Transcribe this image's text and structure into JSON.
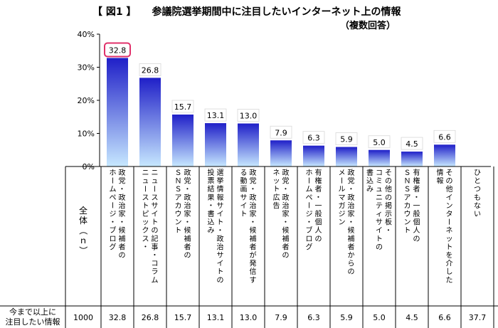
{
  "title": {
    "figure_label": "【 図1 】",
    "main": "参議院選挙期間中に注目したいインターネット上の情報",
    "sub": "（複数回答）"
  },
  "colors": {
    "bar_top": "#1f1fc8",
    "bar_bottom": "#c7e8ff",
    "highlight_border": "#e0306a",
    "grid": "#000000"
  },
  "table": {
    "header_n": "全体（ｎ）",
    "row_label_line1": "今まで以上に",
    "row_label_line2": "注目したい情報",
    "n_value": "1000"
  },
  "chart_data": {
    "type": "bar",
    "ylim": [
      0,
      40
    ],
    "yticks": [
      "0%",
      "10%",
      "20%",
      "30%",
      "40%"
    ],
    "highlight_index": 0,
    "categories": [
      [
        "政党・政治家・候補者の",
        "ホームページ・ブログ"
      ],
      [
        "ニュースサイトの記事・コラム",
        "ニューストピックス・"
      ],
      [
        "政党・政治家・候補者の",
        "ＳＮＳアカウント"
      ],
      [
        "選挙情報サイト・政治サイトの",
        "投票結果・書込み"
      ],
      [
        "政党・政治家・候補者が発信す",
        "る動画サイト"
      ],
      [
        "政党・政治家・候補者の",
        "ネット広告"
      ],
      [
        "有権者・一般個人の",
        "ホームページ・ブログ"
      ],
      [
        "政党・政治家・候補者からの",
        "メールマガジン"
      ],
      [
        "その他の掲示板・",
        "コミュニティサイトの",
        "書込み"
      ],
      [
        "有権者・一般個人の",
        "ＳＮＳアカウント"
      ],
      [
        "その他インターネットを介した",
        "情報"
      ],
      [
        "ひとつもない"
      ]
    ],
    "values": [
      32.8,
      26.8,
      15.7,
      13.1,
      13.0,
      7.9,
      6.3,
      5.9,
      5.0,
      4.5,
      6.6,
      37.7
    ],
    "labels": [
      "32.8",
      "26.8",
      "15.7",
      "13.1",
      "13.0",
      "7.9",
      "6.3",
      "5.9",
      "5.0",
      "4.5",
      "6.6",
      "37.7"
    ]
  }
}
